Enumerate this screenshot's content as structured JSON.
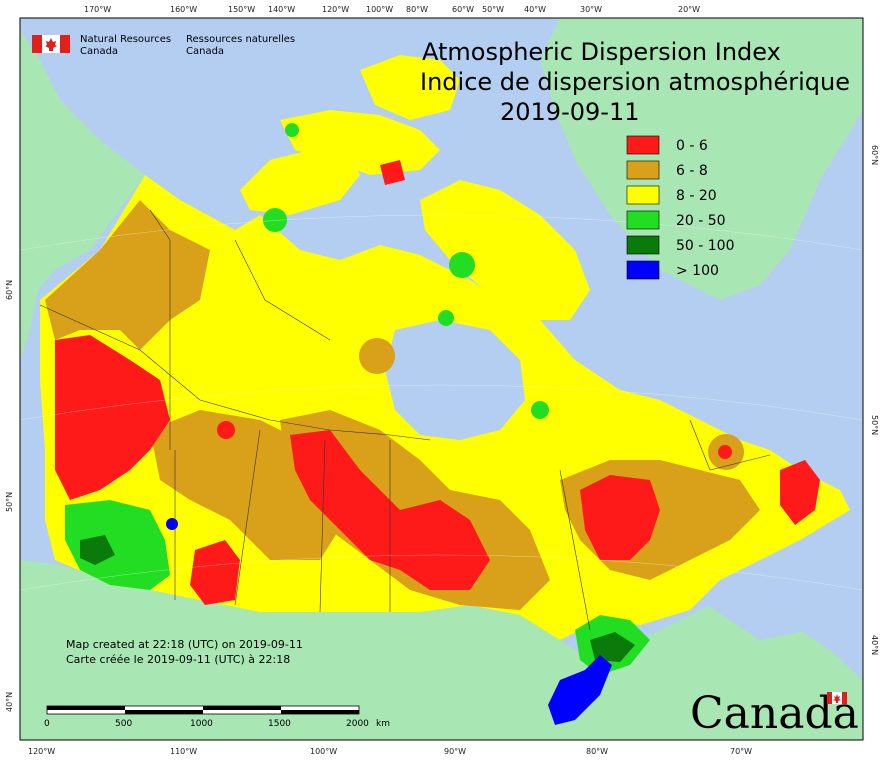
{
  "header": {
    "agency_en_1": "Natural Resources",
    "agency_en_2": "Canada",
    "agency_fr_1": "Ressources naturelles",
    "agency_fr_2": "Canada"
  },
  "title": {
    "line1": "Atmospheric Dispersion Index",
    "line2": "Indice de dispersion atmosphérique",
    "date": "2019-09-11"
  },
  "legend": [
    {
      "label": "0 - 6",
      "color": "#ff1a1a"
    },
    {
      "label": "6 - 8",
      "color": "#d9a01a"
    },
    {
      "label": "8 - 20",
      "color": "#ffff00"
    },
    {
      "label": "20 - 50",
      "color": "#22dd22"
    },
    {
      "label": "50 - 100",
      "color": "#0a7a0a"
    },
    {
      "label": "> 100",
      "color": "#0000ff"
    }
  ],
  "top_ticks": [
    "170°W",
    "160°W",
    "150°W",
    "140°W",
    "120°W",
    "100°W",
    "80°W",
    "60°W",
    "50°W",
    "40°W",
    "30°W",
    "20°W"
  ],
  "bottom_ticks": [
    "120°W",
    "110°W",
    "100°W",
    "90°W",
    "80°W",
    "70°W"
  ],
  "left_ticks": [
    "60°N",
    "50°N",
    "40°N"
  ],
  "right_ticks": [
    "60°N",
    "50°N",
    "40°N"
  ],
  "notes": {
    "en": "Map created at 22:18 (UTC) on 2019-09-11",
    "fr": "Carte créée le 2019-09-11 (UTC) à 22:18"
  },
  "scale_bar": {
    "labels": [
      "0",
      "500",
      "1000",
      "1500",
      "2000"
    ],
    "unit": "km"
  },
  "wordmark": "Canada",
  "colors": {
    "ocean": "#b3cef0",
    "foreign_land": "#a8e6b4"
  }
}
